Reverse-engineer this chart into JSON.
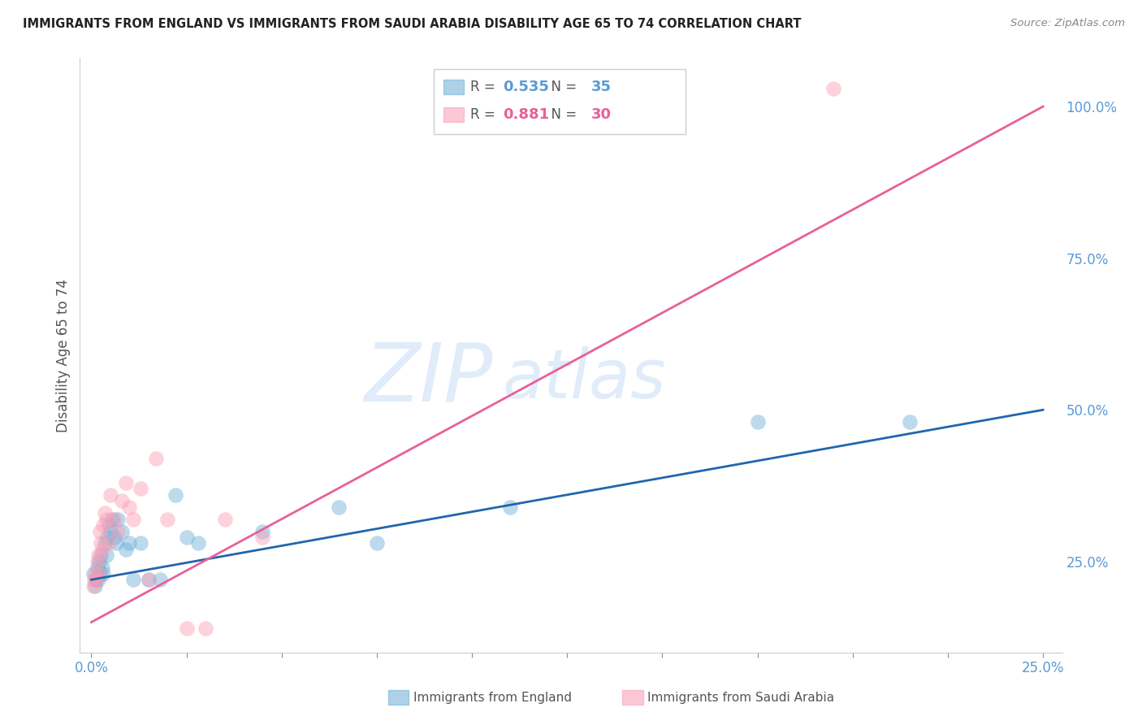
{
  "title": "IMMIGRANTS FROM ENGLAND VS IMMIGRANTS FROM SAUDI ARABIA DISABILITY AGE 65 TO 74 CORRELATION CHART",
  "source": "Source: ZipAtlas.com",
  "ylabel": "Disability Age 65 to 74",
  "x_tick_labels": [
    "0.0%",
    "",
    "",
    "",
    "",
    "",
    "",
    "",
    "",
    "25.0%"
  ],
  "x_tick_values": [
    0.0,
    2.5,
    5.0,
    7.5,
    10.0,
    12.5,
    15.0,
    17.5,
    20.0,
    25.0
  ],
  "y_tick_labels": [
    "100.0%",
    "75.0%",
    "50.0%",
    "25.0%"
  ],
  "y_tick_values": [
    100.0,
    75.0,
    50.0,
    25.0
  ],
  "xlim": [
    -0.3,
    25.5
  ],
  "ylim": [
    10.0,
    108.0
  ],
  "legend_england": "Immigrants from England",
  "legend_saudi": "Immigrants from Saudi Arabia",
  "R_england": "0.535",
  "N_england": "35",
  "R_saudi": "0.881",
  "N_saudi": "30",
  "england_color": "#6baed6",
  "saudi_color": "#fc9cb4",
  "england_line_color": "#2166ac",
  "saudi_line_color": "#e8609a",
  "watermark_zip": "ZIP",
  "watermark_atlas": "atlas",
  "eng_line_x0": 0.0,
  "eng_line_y0": 22.0,
  "eng_line_x1": 25.0,
  "eng_line_y1": 50.0,
  "sau_line_x0": 0.0,
  "sau_line_y0": 15.0,
  "sau_line_x1": 25.0,
  "sau_line_y1": 100.0,
  "england_x": [
    0.05,
    0.1,
    0.12,
    0.15,
    0.18,
    0.2,
    0.22,
    0.25,
    0.28,
    0.3,
    0.35,
    0.4,
    0.42,
    0.45,
    0.5,
    0.55,
    0.6,
    0.65,
    0.7,
    0.8,
    0.9,
    1.0,
    1.1,
    1.3,
    1.5,
    1.8,
    2.2,
    2.5,
    2.8,
    4.5,
    6.5,
    7.5,
    11.0,
    17.5,
    21.5
  ],
  "england_y": [
    23,
    21,
    22,
    24,
    22,
    25,
    23,
    26,
    24,
    23,
    28,
    26,
    29,
    31,
    30,
    32,
    29,
    28,
    32,
    30,
    27,
    28,
    22,
    28,
    22,
    22,
    36,
    29,
    28,
    30,
    34,
    28,
    34,
    48,
    48
  ],
  "saudi_x": [
    0.05,
    0.08,
    0.1,
    0.12,
    0.15,
    0.18,
    0.2,
    0.22,
    0.25,
    0.28,
    0.3,
    0.35,
    0.4,
    0.45,
    0.5,
    0.6,
    0.7,
    0.8,
    0.9,
    1.0,
    1.1,
    1.3,
    1.5,
    1.7,
    2.0,
    2.5,
    3.0,
    3.5,
    4.5,
    19.5
  ],
  "saudi_y": [
    21,
    22,
    23,
    22,
    25,
    26,
    23,
    30,
    28,
    27,
    31,
    33,
    32,
    28,
    36,
    32,
    30,
    35,
    38,
    34,
    32,
    37,
    22,
    42,
    32,
    14,
    14,
    32,
    29,
    103
  ]
}
